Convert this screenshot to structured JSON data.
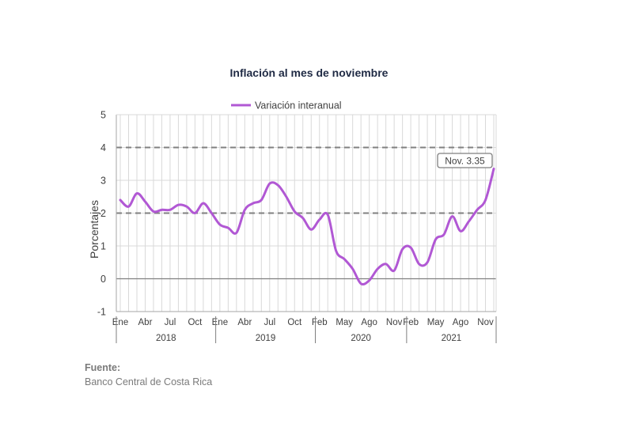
{
  "chart_data": {
    "type": "line",
    "title": "Inflación al mes de noviembre",
    "ylabel": "Porcentajes",
    "xlabel": "",
    "ylim": [
      -1,
      5
    ],
    "yticks": [
      "5",
      "4",
      "3",
      "2",
      "1",
      "0",
      "-1"
    ],
    "grid": true,
    "legend_position": "top-center",
    "series": [
      {
        "name": "Variación interanual",
        "color": "#b158d4",
        "values": [
          2.4,
          2.2,
          2.6,
          2.35,
          2.05,
          2.1,
          2.1,
          2.25,
          2.2,
          2.0,
          2.3,
          2.0,
          1.65,
          1.55,
          1.4,
          2.1,
          2.3,
          2.4,
          2.9,
          2.85,
          2.5,
          2.05,
          1.85,
          1.5,
          1.8,
          1.95,
          0.85,
          0.6,
          0.3,
          -0.15,
          -0.05,
          0.3,
          0.45,
          0.25,
          0.9,
          0.95,
          0.45,
          0.5,
          1.2,
          1.35,
          1.9,
          1.45,
          1.75,
          2.1,
          2.4,
          3.35
        ]
      }
    ],
    "reference_lines": [
      {
        "value": 4,
        "color": "#808080",
        "style": "dashed"
      },
      {
        "value": 2,
        "color": "#808080",
        "style": "dashed"
      },
      {
        "value": 0,
        "color": "#808080",
        "style": "solid"
      }
    ],
    "x_tick_labels": [
      {
        "index": 0,
        "label": "Ene"
      },
      {
        "index": 3,
        "label": "Abr"
      },
      {
        "index": 6,
        "label": "Jul"
      },
      {
        "index": 9,
        "label": "Oct"
      },
      {
        "index": 12,
        "label": "Ene"
      },
      {
        "index": 15,
        "label": "Abr"
      },
      {
        "index": 18,
        "label": "Jul"
      },
      {
        "index": 21,
        "label": "Oct"
      },
      {
        "index": 24,
        "label": "Feb"
      },
      {
        "index": 27,
        "label": "May"
      },
      {
        "index": 30,
        "label": "Ago"
      },
      {
        "index": 33,
        "label": "Nov"
      },
      {
        "index": 35,
        "label": "Feb"
      },
      {
        "index": 38,
        "label": "May"
      },
      {
        "index": 41,
        "label": "Ago"
      },
      {
        "index": 44,
        "label": "Nov"
      }
    ],
    "year_groups": [
      {
        "label": "2018",
        "start": 0,
        "end": 11
      },
      {
        "label": "2019",
        "start": 12,
        "end": 23
      },
      {
        "label": "2020",
        "start": 24,
        "end": 34
      },
      {
        "label": "2021",
        "start": 35,
        "end": 45
      }
    ],
    "annotation": {
      "text": "Nov. 3.35",
      "index": 45,
      "value": 3.35
    }
  },
  "source": {
    "label": "Fuente:",
    "text": "Banco Central de Costa Rica"
  }
}
